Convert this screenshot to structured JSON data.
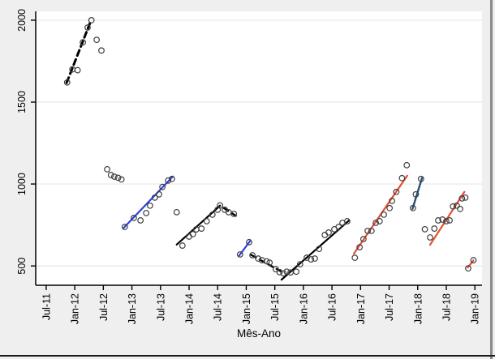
{
  "figure": {
    "background": "#efefef",
    "plot_background": "#ffffff",
    "grid_color": "#e7e7e7",
    "axis_color": "#000000",
    "window_border_right_color": "#8a8a8a",
    "window_border_bottom_color": "#1a1a1a"
  },
  "chart_data": {
    "type": "scatter",
    "title": "",
    "xlabel": "Mês-Ano",
    "ylabel": "",
    "grid": "horizontal-only",
    "legend": "none",
    "marker": {
      "shape": "open-circle",
      "stroke": "#3f3f3f",
      "radius": 3.3
    },
    "palette": {
      "black": "#000000",
      "blue": "#2b43e0",
      "navy": "#274f77",
      "red": "#ea4c33"
    },
    "x_unit": "months-since-Jul-2011",
    "xlim": [
      -2.2,
      91.5
    ],
    "ylim": [
      382,
      2054
    ],
    "x_tick_months": [
      0,
      6,
      12,
      18,
      24,
      30,
      36,
      42,
      48,
      54,
      60,
      66,
      72,
      78,
      84,
      90
    ],
    "x_tick_labels": [
      "Jul-11",
      "Jan-12",
      "Jul-12",
      "Jan-13",
      "Jul-13",
      "Jan-14",
      "Jul-14",
      "Jan-15",
      "Jul-15",
      "Jan-16",
      "Jul-16",
      "Jan-17",
      "Jul-17",
      "Jan-18",
      "Jul-18",
      "Jan-19"
    ],
    "y_ticks": [
      500,
      1000,
      1500,
      2000
    ],
    "y_tick_labels": [
      "500",
      "1000",
      "1500",
      "2000"
    ],
    "series": [
      {
        "name": "fit-2011-12",
        "color": "black",
        "dash": true,
        "width": 3,
        "line": [
          [
            4.3,
            1618
          ],
          [
            9.5,
            2005
          ]
        ],
        "points": [
          [
            4.4,
            1620
          ],
          [
            5.5,
            1700
          ],
          [
            6.6,
            1695
          ],
          [
            7.7,
            1865
          ],
          [
            8.7,
            1955
          ],
          [
            9.5,
            2000
          ]
        ]
      },
      {
        "name": "outliers-mid-2012",
        "color": "black",
        "dash": false,
        "width": 0,
        "line": null,
        "points": [
          [
            10.6,
            1880
          ],
          [
            11.6,
            1815
          ]
        ]
      },
      {
        "name": "cluster-late-2012",
        "color": "black",
        "dash": false,
        "width": 0,
        "line": null,
        "points": [
          [
            12.8,
            1090
          ],
          [
            13.6,
            1055
          ],
          [
            14.3,
            1045
          ],
          [
            15.1,
            1038
          ],
          [
            15.8,
            1028
          ]
        ]
      },
      {
        "name": "fit-2013",
        "color": "blue",
        "dash": false,
        "width": 2.2,
        "line": [
          [
            16.2,
            730
          ],
          [
            26.6,
            1046
          ]
        ],
        "points": [
          [
            16.5,
            738
          ],
          [
            18.4,
            793
          ],
          [
            19.8,
            778
          ],
          [
            21.0,
            823
          ],
          [
            21.8,
            868
          ],
          [
            22.8,
            917
          ],
          [
            23.7,
            937
          ],
          [
            24.4,
            982
          ],
          [
            25.6,
            1021
          ],
          [
            26.4,
            1031
          ]
        ]
      },
      {
        "name": "outlier-late-2013",
        "color": "black",
        "dash": false,
        "width": 0,
        "line": null,
        "points": [
          [
            27.4,
            828
          ]
        ]
      },
      {
        "name": "fit-2014",
        "color": "black",
        "dash": false,
        "width": 2.2,
        "line": [
          [
            27.4,
            630
          ],
          [
            36.5,
            868
          ]
        ],
        "points": [
          [
            28.6,
            624
          ],
          [
            30.0,
            679
          ],
          [
            30.8,
            694
          ],
          [
            31.5,
            723
          ],
          [
            32.6,
            728
          ],
          [
            33.7,
            773
          ],
          [
            34.9,
            813
          ],
          [
            36.0,
            843
          ],
          [
            36.5,
            870
          ]
        ]
      },
      {
        "name": "fit-late-2014",
        "color": "black",
        "dash": true,
        "width": 2.4,
        "line": [
          [
            37.2,
            855
          ],
          [
            39.8,
            806
          ]
        ],
        "points": [
          [
            37.5,
            843
          ],
          [
            38.3,
            828
          ],
          [
            39.4,
            818
          ]
        ]
      },
      {
        "name": "fit-early-2015",
        "color": "blue",
        "dash": false,
        "width": 2.2,
        "line": [
          [
            40.5,
            562
          ],
          [
            42.8,
            652
          ]
        ],
        "points": [
          [
            40.7,
            570
          ],
          [
            42.6,
            645
          ]
        ]
      },
      {
        "name": "fit-mid-2015",
        "color": "black",
        "dash": true,
        "width": 2.4,
        "line": [
          [
            43.0,
            568
          ],
          [
            49.2,
            468
          ]
        ],
        "points": [
          [
            43.3,
            565
          ],
          [
            44.5,
            545
          ],
          [
            45.3,
            535
          ],
          [
            46.3,
            528
          ],
          [
            46.9,
            520
          ],
          [
            48.2,
            480
          ],
          [
            49.0,
            462
          ]
        ]
      },
      {
        "name": "fit-2016",
        "color": "black",
        "dash": false,
        "width": 2.2,
        "line": [
          [
            49.4,
            416
          ],
          [
            63.6,
            778
          ]
        ],
        "points": [
          [
            49.8,
            455
          ],
          [
            50.5,
            465
          ],
          [
            51.3,
            460
          ],
          [
            52.5,
            465
          ],
          [
            53.3,
            510
          ],
          [
            54.7,
            550
          ],
          [
            55.6,
            540
          ],
          [
            56.4,
            545
          ],
          [
            57.3,
            604
          ],
          [
            58.5,
            689
          ],
          [
            59.3,
            704
          ],
          [
            60.5,
            724
          ],
          [
            61.4,
            738
          ],
          [
            62.2,
            763
          ],
          [
            63.2,
            773
          ]
        ]
      },
      {
        "name": "fit-2017",
        "color": "red",
        "dash": false,
        "width": 2.2,
        "line": [
          [
            64.6,
            575
          ],
          [
            75.8,
            1051
          ]
        ],
        "points": [
          [
            64.8,
            550
          ],
          [
            65.8,
            614
          ],
          [
            66.6,
            664
          ],
          [
            67.5,
            714
          ],
          [
            68.3,
            714
          ],
          [
            69.2,
            763
          ],
          [
            70.0,
            773
          ],
          [
            70.9,
            813
          ],
          [
            72.1,
            853
          ],
          [
            72.6,
            897
          ],
          [
            73.5,
            952
          ],
          [
            74.7,
            1036
          ]
        ]
      },
      {
        "name": "outlier-late-2017",
        "color": "black",
        "dash": false,
        "width": 0,
        "line": null,
        "points": [
          [
            75.7,
            1115
          ]
        ]
      },
      {
        "name": "fit-turn-2018",
        "color": "navy",
        "dash": false,
        "width": 2.4,
        "line": [
          [
            76.9,
            848
          ],
          [
            78.9,
            1036
          ]
        ],
        "points": [
          [
            77.0,
            853
          ],
          [
            77.6,
            937
          ],
          [
            78.7,
            1031
          ]
        ]
      },
      {
        "name": "fit-2018",
        "color": "red",
        "dash": false,
        "width": 2.2,
        "line": [
          [
            80.6,
            629
          ],
          [
            87.8,
            952
          ]
        ],
        "points": [
          [
            79.5,
            724
          ],
          [
            80.6,
            674
          ],
          [
            81.5,
            728
          ],
          [
            82.3,
            778
          ],
          [
            83.2,
            783
          ],
          [
            84.0,
            773
          ],
          [
            84.7,
            778
          ],
          [
            85.4,
            863
          ],
          [
            86.2,
            868
          ],
          [
            86.9,
            848
          ],
          [
            87.3,
            912
          ],
          [
            88.0,
            917
          ]
        ]
      },
      {
        "name": "fit-early-2019",
        "color": "red",
        "dash": false,
        "width": 2.2,
        "line": [
          [
            88.5,
            490
          ],
          [
            89.7,
            534
          ]
        ],
        "points": [
          [
            88.6,
            485
          ],
          [
            89.7,
            535
          ]
        ]
      }
    ]
  }
}
